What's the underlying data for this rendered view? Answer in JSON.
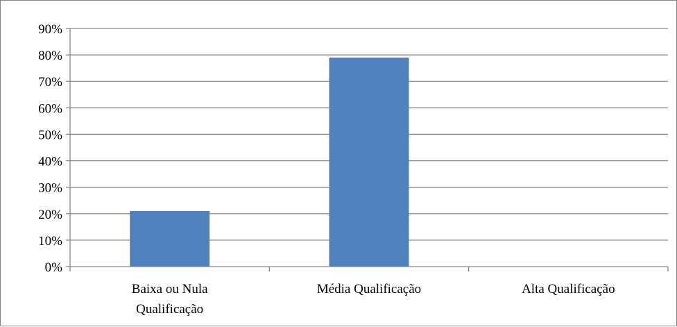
{
  "chart_data": {
    "type": "bar",
    "categories": [
      [
        "Baixa ou Nula",
        "Qualificação"
      ],
      [
        "Média Qualificação"
      ],
      [
        "Alta Qualificação"
      ]
    ],
    "values": [
      21,
      79,
      0
    ],
    "value_unit": "%",
    "ylim": [
      0,
      90
    ],
    "yticks": [
      "0%",
      "10%",
      "20%",
      "30%",
      "40%",
      "50%",
      "60%",
      "70%",
      "80%",
      "90%"
    ],
    "title": "",
    "xlabel": "",
    "ylabel": "",
    "grid": "horizontal",
    "legend": "none",
    "bar_color": "#4F81BD",
    "gridline_color": "#868686"
  }
}
